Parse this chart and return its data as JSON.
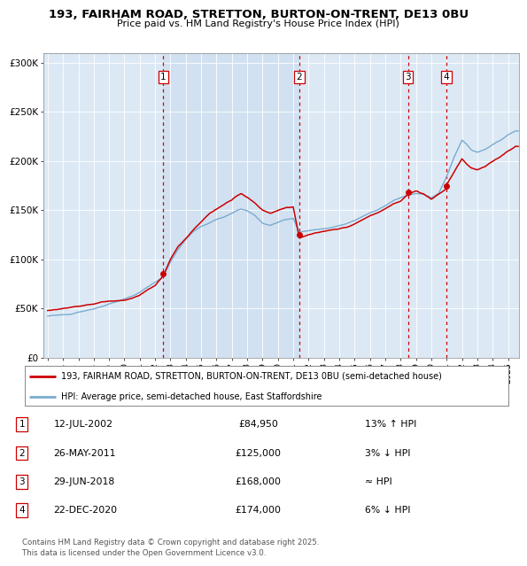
{
  "title1": "193, FAIRHAM ROAD, STRETTON, BURTON-ON-TRENT, DE13 0BU",
  "title2": "Price paid vs. HM Land Registry's House Price Index (HPI)",
  "legend_line1": "193, FAIRHAM ROAD, STRETTON, BURTON-ON-TRENT, DE13 0BU (semi-detached house)",
  "legend_line2": "HPI: Average price, semi-detached house, East Staffordshire",
  "sale_color": "#cc0000",
  "hpi_color": "#7aabcf",
  "background_color": "#dce9f5",
  "vline_color": "#cc0000",
  "sale_points": [
    {
      "date_num": 2002.53,
      "price": 84950,
      "label": "1"
    },
    {
      "date_num": 2011.4,
      "price": 125000,
      "label": "2"
    },
    {
      "date_num": 2018.49,
      "price": 168000,
      "label": "3"
    },
    {
      "date_num": 2020.98,
      "price": 174000,
      "label": "4"
    }
  ],
  "table_rows": [
    {
      "num": "1",
      "date": "12-JUL-2002",
      "price": "£84,950",
      "hpi": "13% ↑ HPI"
    },
    {
      "num": "2",
      "date": "26-MAY-2011",
      "price": "£125,000",
      "hpi": "3% ↓ HPI"
    },
    {
      "num": "3",
      "date": "29-JUN-2018",
      "price": "£168,000",
      "hpi": "≈ HPI"
    },
    {
      "num": "4",
      "date": "22-DEC-2020",
      "price": "£174,000",
      "hpi": "6% ↓ HPI"
    }
  ],
  "footnote": "Contains HM Land Registry data © Crown copyright and database right 2025.\nThis data is licensed under the Open Government Licence v3.0.",
  "ylim": [
    0,
    310000
  ],
  "xlim_start": 1994.7,
  "xlim_end": 2025.7,
  "hpi_anchors_t": [
    1995.0,
    1995.5,
    1996.0,
    1996.5,
    1997.0,
    1997.5,
    1998.0,
    1998.5,
    1999.0,
    1999.5,
    2000.0,
    2000.5,
    2001.0,
    2001.5,
    2002.0,
    2002.5,
    2003.0,
    2003.5,
    2004.0,
    2004.5,
    2005.0,
    2005.5,
    2006.0,
    2006.5,
    2007.0,
    2007.3,
    2007.6,
    2008.0,
    2008.5,
    2009.0,
    2009.5,
    2010.0,
    2010.5,
    2011.0,
    2011.4,
    2012.0,
    2012.5,
    2013.0,
    2013.5,
    2014.0,
    2014.5,
    2015.0,
    2015.5,
    2016.0,
    2016.5,
    2017.0,
    2017.5,
    2018.0,
    2018.5,
    2019.0,
    2019.5,
    2020.0,
    2020.5,
    2021.0,
    2021.5,
    2022.0,
    2022.3,
    2022.6,
    2023.0,
    2023.5,
    2024.0,
    2024.5,
    2025.0,
    2025.5
  ],
  "hpi_anchors_v": [
    42000,
    43000,
    43500,
    44000,
    46000,
    48000,
    50000,
    52000,
    55000,
    57000,
    60000,
    63000,
    67000,
    72000,
    77000,
    82000,
    97000,
    110000,
    120000,
    128000,
    133000,
    136000,
    140000,
    143000,
    147000,
    150000,
    152000,
    150000,
    145000,
    137000,
    135000,
    138000,
    141000,
    142000,
    128000,
    130000,
    131000,
    132000,
    133000,
    135000,
    137000,
    140000,
    144000,
    148000,
    151000,
    155000,
    160000,
    163000,
    166000,
    168000,
    167000,
    163000,
    168000,
    185000,
    205000,
    222000,
    218000,
    212000,
    210000,
    213000,
    218000,
    222000,
    228000,
    232000
  ],
  "sale_anchors_t": [
    1995.0,
    1995.5,
    1996.0,
    1996.5,
    1997.0,
    1997.5,
    1998.0,
    1998.5,
    1999.0,
    1999.5,
    2000.0,
    2000.5,
    2001.0,
    2001.5,
    2002.0,
    2002.53,
    2003.0,
    2003.5,
    2004.0,
    2004.5,
    2005.0,
    2005.5,
    2006.0,
    2006.5,
    2007.0,
    2007.3,
    2007.6,
    2008.0,
    2008.5,
    2009.0,
    2009.5,
    2010.0,
    2010.5,
    2011.0,
    2011.4,
    2012.0,
    2012.5,
    2013.0,
    2013.5,
    2014.0,
    2014.5,
    2015.0,
    2015.5,
    2016.0,
    2016.5,
    2017.0,
    2017.5,
    2018.0,
    2018.49,
    2019.0,
    2019.5,
    2020.0,
    2020.98,
    2021.0,
    2021.5,
    2022.0,
    2022.3,
    2022.6,
    2023.0,
    2023.5,
    2024.0,
    2024.5,
    2025.0,
    2025.5
  ],
  "sale_anchors_v": [
    48000,
    49000,
    50000,
    52000,
    53000,
    54000,
    55000,
    57000,
    58000,
    59000,
    60000,
    62000,
    65000,
    70000,
    75000,
    84950,
    102000,
    115000,
    123000,
    132000,
    140000,
    148000,
    153000,
    158000,
    163000,
    167000,
    170000,
    166000,
    160000,
    153000,
    150000,
    153000,
    156000,
    157000,
    125000,
    128000,
    130000,
    131000,
    132000,
    133000,
    135000,
    138000,
    142000,
    146000,
    149000,
    153000,
    158000,
    161000,
    168000,
    171000,
    168000,
    163000,
    174000,
    178000,
    192000,
    205000,
    200000,
    196000,
    194000,
    197000,
    202000,
    207000,
    213000,
    218000
  ]
}
